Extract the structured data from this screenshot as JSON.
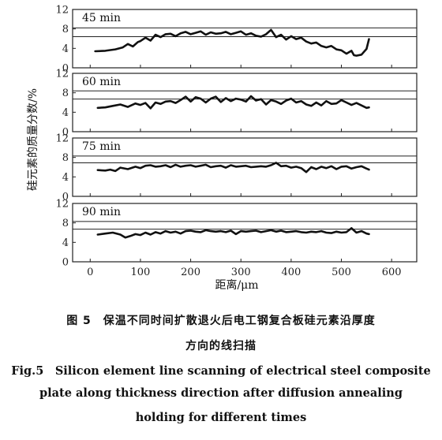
{
  "chart_data": {
    "type": "line",
    "ylabel": "硅元素的质量分数/%",
    "xlabel": "距离/μm",
    "xlim": [
      -35,
      650
    ],
    "ylim": [
      0,
      12
    ],
    "x_ticks": [
      0,
      100,
      200,
      300,
      400,
      500,
      600
    ],
    "y_ticks": [
      0,
      4,
      8,
      12
    ],
    "grid": false,
    "panels": [
      {
        "label": "45 min",
        "ref_lines": [
          8.2,
          6.4
        ],
        "x": [
          10,
          30,
          50,
          65,
          75,
          85,
          95,
          100,
          110,
          120,
          130,
          140,
          150,
          160,
          170,
          180,
          190,
          200,
          210,
          220,
          230,
          240,
          250,
          260,
          270,
          280,
          290,
          300,
          310,
          320,
          330,
          340,
          350,
          360,
          370,
          380,
          390,
          400,
          410,
          420,
          430,
          440,
          450,
          460,
          470,
          480,
          490,
          500,
          510,
          520,
          525,
          530,
          540,
          550,
          555
        ],
        "y": [
          3.4,
          3.5,
          3.8,
          4.2,
          4.9,
          4.4,
          5.3,
          5.5,
          6.2,
          5.6,
          6.8,
          6.3,
          6.9,
          7.0,
          6.5,
          7.1,
          7.4,
          6.9,
          7.2,
          7.5,
          6.8,
          7.3,
          7.0,
          7.1,
          7.4,
          6.9,
          7.2,
          7.5,
          6.8,
          7.1,
          6.6,
          6.4,
          6.9,
          7.8,
          6.3,
          6.8,
          5.8,
          6.5,
          5.9,
          6.2,
          5.4,
          5.0,
          5.2,
          4.5,
          4.2,
          4.5,
          3.8,
          3.6,
          2.9,
          3.5,
          2.6,
          2.5,
          2.7,
          3.9,
          5.9
        ]
      },
      {
        "label": "60 min",
        "ref_lines": [
          8.4,
          6.7
        ],
        "x": [
          15,
          30,
          45,
          60,
          75,
          90,
          100,
          110,
          120,
          130,
          140,
          150,
          160,
          170,
          180,
          190,
          200,
          210,
          220,
          230,
          240,
          250,
          260,
          270,
          280,
          290,
          300,
          310,
          320,
          330,
          340,
          350,
          360,
          370,
          380,
          390,
          400,
          410,
          420,
          430,
          440,
          450,
          460,
          470,
          480,
          490,
          500,
          510,
          520,
          530,
          540,
          550,
          555
        ],
        "y": [
          4.9,
          5.0,
          5.3,
          5.6,
          5.1,
          5.8,
          5.5,
          5.9,
          4.8,
          6.0,
          5.7,
          6.2,
          6.3,
          5.9,
          6.5,
          7.2,
          6.2,
          7.1,
          6.8,
          6.0,
          6.8,
          7.2,
          6.1,
          6.9,
          6.3,
          6.8,
          6.6,
          6.2,
          7.3,
          6.4,
          6.7,
          5.6,
          6.5,
          6.2,
          5.7,
          6.4,
          6.8,
          6.0,
          6.3,
          5.6,
          5.3,
          6.0,
          5.4,
          6.3,
          5.7,
          5.8,
          6.5,
          6.0,
          5.5,
          5.9,
          5.4,
          4.9,
          5.0
        ]
      },
      {
        "label": "75 min",
        "ref_lines": [
          8.3,
          6.9
        ],
        "x": [
          15,
          30,
          40,
          50,
          60,
          75,
          90,
          100,
          110,
          120,
          130,
          140,
          150,
          160,
          170,
          180,
          190,
          200,
          210,
          220,
          230,
          240,
          250,
          260,
          270,
          280,
          290,
          300,
          310,
          320,
          330,
          340,
          350,
          360,
          370,
          380,
          390,
          400,
          410,
          420,
          430,
          440,
          450,
          460,
          470,
          480,
          490,
          500,
          510,
          520,
          530,
          540,
          550,
          555
        ],
        "y": [
          5.4,
          5.3,
          5.5,
          5.2,
          5.9,
          5.6,
          6.1,
          5.8,
          6.3,
          6.4,
          6.1,
          6.2,
          6.4,
          6.0,
          6.5,
          6.1,
          6.3,
          6.4,
          6.1,
          6.3,
          6.5,
          6.0,
          6.2,
          6.3,
          5.9,
          6.4,
          6.1,
          6.2,
          6.3,
          6.0,
          6.1,
          6.2,
          6.1,
          6.4,
          6.9,
          6.2,
          6.3,
          5.9,
          6.1,
          5.8,
          5.0,
          6.0,
          5.6,
          6.1,
          5.8,
          6.2,
          5.6,
          6.1,
          6.2,
          5.7,
          6.0,
          6.2,
          5.7,
          5.5
        ]
      },
      {
        "label": "90 min",
        "ref_lines": [
          8.3,
          6.7
        ],
        "x": [
          15,
          30,
          45,
          60,
          70,
          80,
          90,
          100,
          110,
          120,
          130,
          140,
          150,
          160,
          170,
          180,
          190,
          200,
          210,
          220,
          230,
          240,
          250,
          260,
          270,
          280,
          290,
          300,
          310,
          320,
          330,
          340,
          350,
          360,
          370,
          380,
          390,
          400,
          410,
          420,
          430,
          440,
          450,
          460,
          470,
          480,
          490,
          500,
          510,
          520,
          530,
          540,
          550,
          555
        ],
        "y": [
          5.6,
          5.8,
          6.0,
          5.6,
          5.0,
          5.3,
          5.7,
          5.5,
          6.0,
          5.6,
          6.1,
          5.8,
          6.3,
          6.0,
          6.2,
          5.8,
          6.3,
          6.4,
          6.2,
          6.1,
          6.5,
          6.3,
          6.2,
          6.3,
          6.1,
          6.4,
          5.7,
          6.3,
          6.2,
          6.3,
          6.4,
          6.1,
          6.3,
          6.5,
          6.2,
          6.4,
          6.1,
          6.2,
          6.3,
          6.1,
          6.0,
          6.2,
          6.1,
          6.3,
          6.0,
          5.9,
          6.2,
          6.0,
          6.1,
          6.9,
          6.0,
          6.3,
          5.8,
          5.7
        ]
      }
    ]
  },
  "caption": {
    "cn_line1": "图 5　保温不同时间扩散退火后电工钢复合板硅元素沿厚度",
    "cn_line2": "方向的线扫描",
    "en_line1": "Fig.5　Silicon element line scanning of electrical steel composite",
    "en_line2": "plate along thickness direction after diffusion annealing",
    "en_line3": "holding for different times"
  }
}
